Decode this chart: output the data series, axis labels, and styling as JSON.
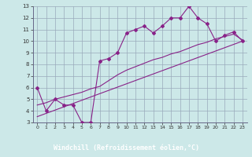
{
  "xlabel": "Windchill (Refroidissement éolien,°C)",
  "background_color": "#cce8e8",
  "grid_color": "#99aabb",
  "line_color": "#882288",
  "xlabel_bg": "#882288",
  "xlabel_fg": "#ffffff",
  "xlim": [
    -0.5,
    23.5
  ],
  "ylim": [
    3,
    13
  ],
  "xticks": [
    0,
    1,
    2,
    3,
    4,
    5,
    6,
    7,
    8,
    9,
    10,
    11,
    12,
    13,
    14,
    15,
    16,
    17,
    18,
    19,
    20,
    21,
    22,
    23
  ],
  "yticks": [
    3,
    4,
    5,
    6,
    7,
    8,
    9,
    10,
    11,
    12,
    13
  ],
  "line1_x": [
    0,
    1,
    2,
    3,
    4,
    5,
    6,
    7,
    8,
    9,
    10,
    11,
    12,
    13,
    14,
    15,
    16,
    17,
    18,
    19,
    20,
    21,
    22,
    23
  ],
  "line1_y": [
    6.0,
    4.0,
    5.0,
    4.5,
    4.5,
    3.0,
    3.0,
    8.3,
    8.5,
    9.0,
    10.7,
    11.0,
    11.3,
    10.7,
    11.3,
    12.0,
    12.0,
    13.0,
    12.0,
    11.5,
    10.0,
    10.5,
    10.8,
    10.0
  ],
  "line2_x": [
    0,
    1,
    2,
    3,
    4,
    5,
    6,
    7,
    8,
    9,
    10,
    11,
    12,
    13,
    14,
    15,
    16,
    17,
    18,
    19,
    20,
    21,
    22,
    23
  ],
  "line2_y": [
    4.5,
    4.7,
    5.0,
    5.2,
    5.4,
    5.6,
    5.9,
    6.1,
    6.6,
    7.1,
    7.5,
    7.8,
    8.1,
    8.4,
    8.6,
    8.9,
    9.1,
    9.4,
    9.7,
    9.9,
    10.2,
    10.4,
    10.6,
    10.1
  ],
  "line3_x": [
    0,
    23
  ],
  "line3_y": [
    3.5,
    10.0
  ]
}
